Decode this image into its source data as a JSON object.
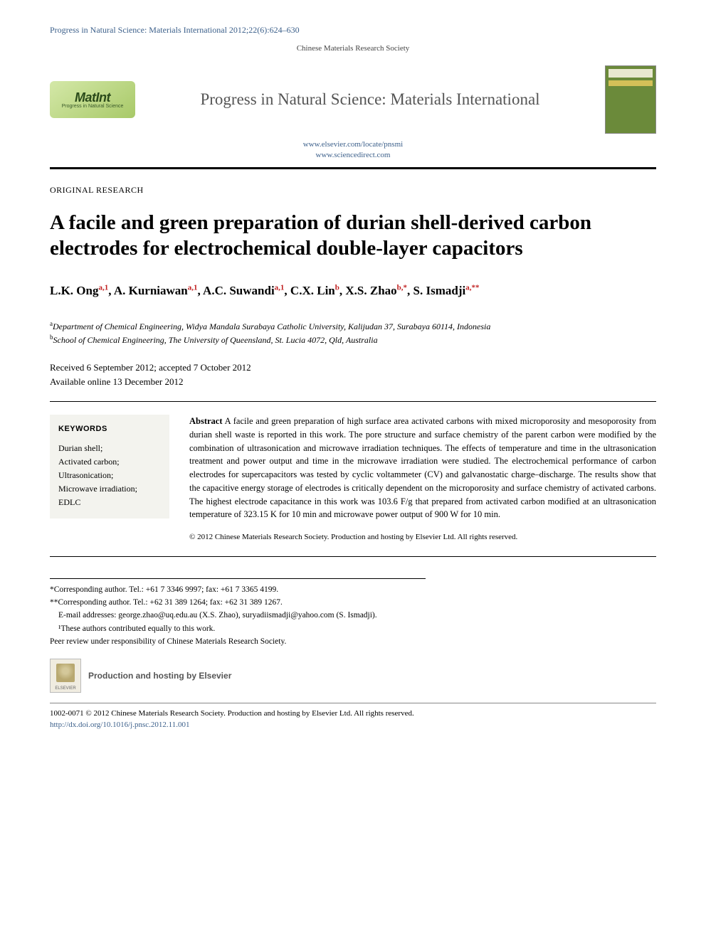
{
  "running_head": "Progress in Natural Science: Materials International 2012;22(6):624–630",
  "society": "Chinese Materials Research Society",
  "logo": {
    "main": "MatInt",
    "sub": "Progress in\nNatural Science"
  },
  "journal_name": "Progress in Natural Science: Materials International",
  "links": {
    "line1": "www.elsevier.com/locate/pnsmi",
    "line2": "www.sciencedirect.com"
  },
  "article_type": "ORIGINAL RESEARCH",
  "title": "A facile and green preparation of durian shell-derived carbon electrodes for electrochemical double-layer capacitors",
  "authors": [
    {
      "name": "L.K. Ong",
      "sup": "a,1"
    },
    {
      "name": "A. Kurniawan",
      "sup": "a,1"
    },
    {
      "name": "A.C. Suwandi",
      "sup": "a,1"
    },
    {
      "name": "C.X. Lin",
      "sup": "b"
    },
    {
      "name": "X.S. Zhao",
      "sup": "b,*"
    },
    {
      "name": "S. Ismadji",
      "sup": "a,**"
    }
  ],
  "affiliations": [
    {
      "sup": "a",
      "text": "Department of Chemical Engineering, Widya Mandala Surabaya Catholic University, Kalijudan 37, Surabaya 60114, Indonesia"
    },
    {
      "sup": "b",
      "text": "School of Chemical Engineering, The University of Queensland, St. Lucia 4072, Qld, Australia"
    }
  ],
  "dates": {
    "received_accepted": "Received 6 September 2012; accepted 7 October 2012",
    "online": "Available online 13 December 2012"
  },
  "keywords": {
    "heading": "KEYWORDS",
    "items": [
      "Durian shell;",
      "Activated carbon;",
      "Ultrasonication;",
      "Microwave irradiation;",
      "EDLC"
    ]
  },
  "abstract": {
    "label": "Abstract",
    "text": "A facile and green preparation of high surface area activated carbons with mixed microporosity and mesoporosity from durian shell waste is reported in this work. The pore structure and surface chemistry of the parent carbon were modified by the combination of ultrasonication and microwave irradiation techniques. The effects of temperature and time in the ultrasonication treatment and power output and time in the microwave irradiation were studied. The electrochemical performance of carbon electrodes for supercapacitors was tested by cyclic voltammeter (CV) and galvanostatic charge–discharge. The results show that the capacitive energy storage of electrodes is critically dependent on the microporosity and surface chemistry of activated carbons. The highest electrode capacitance in this work was 103.6 F/g that prepared from activated carbon modified at an ultrasonication temperature of 323.15 K for 10 min and microwave power output of 900 W for 10 min.",
    "copyright": "© 2012 Chinese Materials Research Society. Production and hosting by Elsevier Ltd. All rights reserved."
  },
  "footnotes": {
    "corr1": "*Corresponding author. Tel.: +61 7 3346 9997; fax: +61 7 3365 4199.",
    "corr2": "**Corresponding author. Tel.: +62 31 389 1264; fax: +62 31 389 1267.",
    "emails": "E-mail addresses: george.zhao@uq.edu.au (X.S. Zhao), suryadiismadji@yahoo.com (S. Ismadji).",
    "equal": "¹These authors contributed equally to this work.",
    "peer": "Peer review under responsibility of Chinese Materials Research Society."
  },
  "elsevier": {
    "logo_text": "ELSEVIER",
    "hosting": "Production and hosting by Elsevier"
  },
  "bottom": {
    "line1": "1002-0071 © 2012 Chinese Materials Research Society. Production and hosting by Elsevier Ltd. All rights reserved.",
    "doi": "http://dx.doi.org/10.1016/j.pnsc.2012.11.001"
  }
}
